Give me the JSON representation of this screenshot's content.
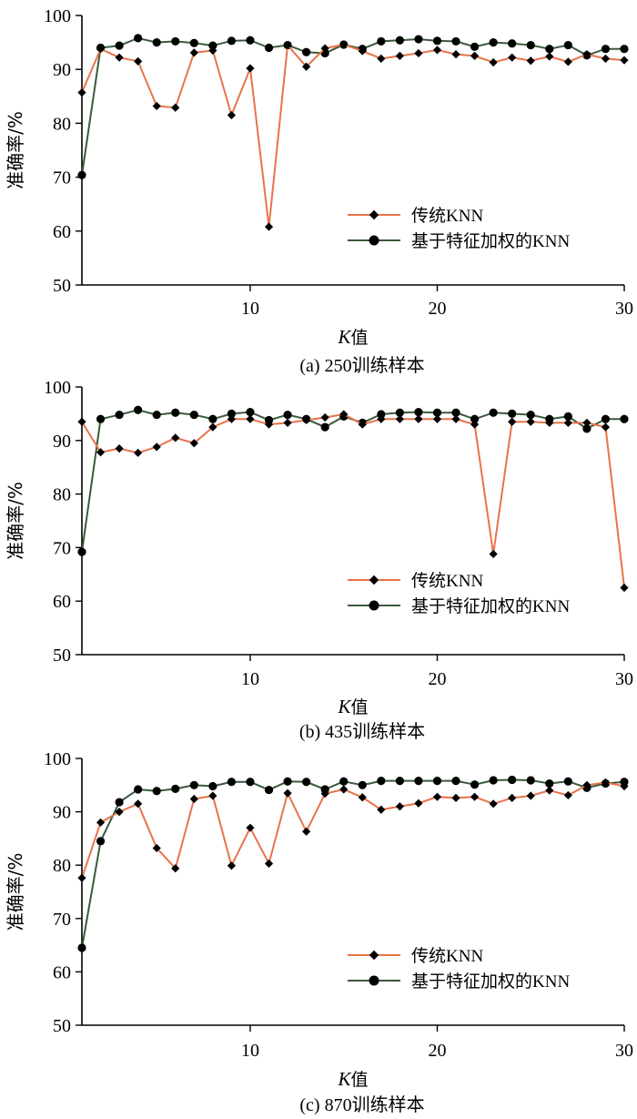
{
  "chart_data": [
    {
      "type": "line",
      "caption": "(a) 250训练样本",
      "xlabel_italic": "K",
      "xlabel_suffix": "值",
      "ylabel": "准确率/%",
      "xlim": [
        1,
        30
      ],
      "ylim": [
        50,
        100
      ],
      "xticks": [
        10,
        20,
        30
      ],
      "yticks": [
        50,
        60,
        70,
        80,
        90,
        100
      ],
      "legend_position": "center-right",
      "x": [
        1,
        2,
        3,
        4,
        5,
        6,
        7,
        8,
        9,
        10,
        11,
        12,
        13,
        14,
        15,
        16,
        17,
        18,
        19,
        20,
        21,
        22,
        23,
        24,
        25,
        26,
        27,
        28,
        29,
        30
      ],
      "series": [
        {
          "name": "传统KNN",
          "color": "#e8734a",
          "marker": "diamond",
          "values": [
            85.7,
            93.8,
            92.2,
            91.5,
            83.2,
            82.9,
            93.1,
            93.5,
            81.5,
            90.2,
            60.8,
            94.5,
            90.5,
            93.9,
            94.6,
            93.4,
            92.0,
            92.5,
            93.0,
            93.6,
            92.8,
            92.5,
            91.3,
            92.2,
            91.6,
            92.4,
            91.4,
            92.8,
            92.0,
            91.7
          ]
        },
        {
          "name": "基于特征加权的KNN",
          "color": "#3a5a3a",
          "marker": "circle",
          "values": [
            70.4,
            94.0,
            94.4,
            95.8,
            95.0,
            95.2,
            94.9,
            94.4,
            95.3,
            95.4,
            94.0,
            94.5,
            93.2,
            93.0,
            94.6,
            93.8,
            95.2,
            95.4,
            95.6,
            95.3,
            95.2,
            94.2,
            95.0,
            94.8,
            94.5,
            93.8,
            94.5,
            92.6,
            93.8,
            93.8
          ]
        }
      ]
    },
    {
      "type": "line",
      "caption": "(b) 435训练样本",
      "xlabel_italic": "K",
      "xlabel_suffix": "值",
      "ylabel": "准确率/%",
      "xlim": [
        1,
        30
      ],
      "ylim": [
        50,
        100
      ],
      "xticks": [
        10,
        20,
        30
      ],
      "yticks": [
        50,
        60,
        70,
        80,
        90,
        100
      ],
      "legend_position": "lower-right",
      "x": [
        1,
        2,
        3,
        4,
        5,
        6,
        7,
        8,
        9,
        10,
        11,
        12,
        13,
        14,
        15,
        16,
        17,
        18,
        19,
        20,
        21,
        22,
        23,
        24,
        25,
        26,
        27,
        28,
        29,
        30
      ],
      "series": [
        {
          "name": "传统KNN",
          "color": "#e8734a",
          "marker": "diamond",
          "values": [
            93.5,
            87.8,
            88.5,
            87.7,
            88.8,
            90.5,
            89.5,
            92.5,
            94.0,
            94.0,
            93.0,
            93.3,
            93.8,
            94.3,
            94.9,
            93.0,
            94.0,
            94.0,
            94.0,
            94.0,
            94.0,
            93.0,
            68.8,
            93.5,
            93.5,
            93.3,
            93.3,
            93.3,
            92.5,
            62.5
          ]
        },
        {
          "name": "基于特征加权的KNN",
          "color": "#3a5a3a",
          "marker": "circle",
          "values": [
            69.2,
            94.0,
            94.8,
            95.7,
            94.8,
            95.2,
            94.8,
            94.0,
            95.0,
            95.3,
            93.8,
            94.8,
            94.0,
            92.5,
            94.5,
            93.3,
            94.9,
            95.2,
            95.3,
            95.2,
            95.2,
            94.0,
            95.2,
            95.0,
            94.8,
            94.0,
            94.5,
            92.2,
            94.0,
            94.0
          ]
        }
      ]
    },
    {
      "type": "line",
      "caption": "(c) 870训练样本",
      "xlabel_italic": "K",
      "xlabel_suffix": "值",
      "ylabel": "准确率/%",
      "xlim": [
        1,
        30
      ],
      "ylim": [
        50,
        100
      ],
      "xticks": [
        10,
        20,
        30
      ],
      "yticks": [
        50,
        60,
        70,
        80,
        90,
        100
      ],
      "legend_position": "center-right",
      "x": [
        1,
        2,
        3,
        4,
        5,
        6,
        7,
        8,
        9,
        10,
        11,
        12,
        13,
        14,
        15,
        16,
        17,
        18,
        19,
        20,
        21,
        22,
        23,
        24,
        25,
        26,
        27,
        28,
        29,
        30
      ],
      "series": [
        {
          "name": "传统KNN",
          "color": "#e8734a",
          "marker": "diamond",
          "values": [
            77.6,
            88.0,
            90.0,
            91.5,
            83.2,
            79.4,
            92.4,
            93.0,
            79.9,
            87.0,
            80.3,
            93.5,
            86.3,
            93.4,
            94.2,
            92.7,
            90.4,
            91.0,
            91.6,
            92.8,
            92.6,
            92.8,
            91.5,
            92.6,
            93.0,
            94.0,
            93.1,
            95.0,
            95.5,
            94.8
          ]
        },
        {
          "name": "基于特征加权的KNN",
          "color": "#3a5a3a",
          "marker": "circle",
          "values": [
            64.5,
            84.5,
            91.8,
            94.2,
            93.9,
            94.3,
            95.0,
            94.8,
            95.6,
            95.6,
            94.1,
            95.7,
            95.6,
            94.2,
            95.7,
            95.0,
            95.8,
            95.8,
            95.8,
            95.8,
            95.8,
            95.1,
            95.9,
            96.0,
            95.9,
            95.3,
            95.7,
            94.5,
            95.3,
            95.6
          ]
        }
      ]
    }
  ]
}
